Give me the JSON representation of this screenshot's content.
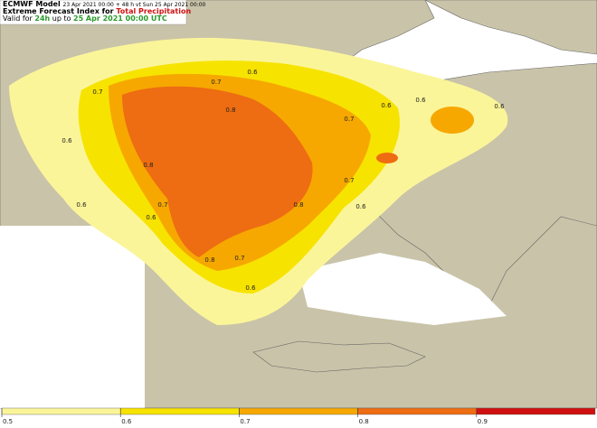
{
  "header": {
    "model": "ECMWF Model",
    "run": "23 Apr 2021 00:00 + 48 h vt Sun 25 Apr 2021 00:00",
    "title_prefix": "Extreme Forecast Index for ",
    "title_highlight": "Total Precipitation",
    "valid_prefix": "Valid for ",
    "valid_period": "24h",
    "valid_mid": " up to ",
    "valid_time": "25 Apr 2021 00:00 UTC"
  },
  "contour_labels": [
    0.6,
    0.7,
    0.7,
    0.8,
    0.7,
    0.6,
    0.6,
    0.6,
    0.6,
    0.8,
    0.7,
    0.6,
    0.6,
    0.6,
    0.7,
    0.8,
    0.8,
    0.7,
    0.6
  ],
  "colorbar": {
    "ticks": [
      0.5,
      0.6,
      0.7,
      0.8,
      0.9
    ]
  }
}
